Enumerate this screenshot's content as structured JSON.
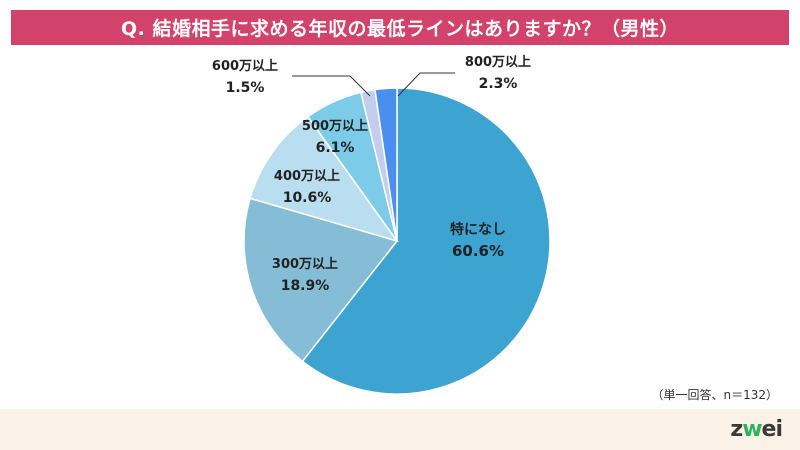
{
  "title": "Q. 結婚相手に求める年収の最低ラインはありますか？（男性）",
  "note": "（単一回答、n＝132）",
  "logo": {
    "prefix": "z",
    "w": "w",
    "suffix": "ei"
  },
  "colors": {
    "title_bg": "#d3426a",
    "footer_bg": "#faf2e6",
    "logo_accent": "#2fb25f"
  },
  "chart_data": {
    "type": "pie",
    "start": "12 o'clock",
    "direction": "clockwise",
    "slices": [
      {
        "name": "特になし",
        "value": 60.6,
        "label": "60.6%",
        "color": "#3da3d0"
      },
      {
        "name": "300万以上",
        "value": 18.9,
        "label": "18.9%",
        "color": "#85bcd6"
      },
      {
        "name": "400万以上",
        "value": 10.6,
        "label": "10.6%",
        "color": "#b8def0"
      },
      {
        "name": "500万以上",
        "value": 6.1,
        "label": "6.1%",
        "color": "#7ccbe8"
      },
      {
        "name": "600万以上",
        "value": 1.5,
        "label": "1.5%",
        "color": "#c2cdf0"
      },
      {
        "name": "800万以上",
        "value": 2.3,
        "label": "2.3%",
        "color": "#4a8ff0"
      }
    ]
  }
}
